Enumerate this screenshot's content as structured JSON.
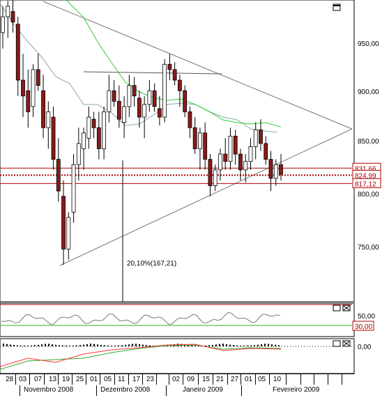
{
  "chart_data": {
    "type": "candlestick",
    "y_axis": {
      "ticks": [
        "950,00",
        "900,00",
        "850,00",
        "800,00",
        "750,00"
      ]
    },
    "price_labels": [
      {
        "text": "831,66",
        "value": 831.66,
        "color": "#b00000"
      },
      {
        "text": "824,99",
        "value": 825.0,
        "color": "#b00000"
      },
      {
        "text": "817,12",
        "value": 817.12,
        "color": "#b00000"
      }
    ],
    "measurement_label": "20,10%(167,21)",
    "oscillator": {
      "ticks": [
        "50,00"
      ],
      "level_label": "30,00"
    },
    "macd": {
      "ticks": [
        "0,00"
      ]
    },
    "x_axis": {
      "days": [
        "28",
        "03",
        "07",
        "13",
        "19",
        "25",
        "01",
        "05",
        "11",
        "17",
        "23",
        "02",
        "09",
        "15",
        "21",
        "27",
        "01",
        "05",
        "10"
      ],
      "months": [
        "Novembro 2008",
        "Dezembro 2008",
        "Janeiro 2009",
        "Fevereiro 2009"
      ]
    },
    "candles": [
      [
        960,
        985,
        945,
        975
      ],
      [
        975,
        990,
        955,
        985
      ],
      [
        980,
        995,
        960,
        970
      ],
      [
        968,
        975,
        900,
        915
      ],
      [
        915,
        940,
        880,
        900
      ],
      [
        905,
        925,
        870,
        885
      ],
      [
        890,
        930,
        880,
        925
      ],
      [
        925,
        940,
        905,
        910
      ],
      [
        905,
        920,
        860,
        870
      ],
      [
        870,
        895,
        850,
        885
      ],
      [
        880,
        890,
        830,
        840
      ],
      [
        840,
        860,
        800,
        810
      ],
      [
        805,
        820,
        740,
        755
      ],
      [
        755,
        790,
        745,
        785
      ],
      [
        790,
        845,
        780,
        835
      ],
      [
        835,
        870,
        820,
        855
      ],
      [
        850,
        870,
        830,
        865
      ],
      [
        860,
        890,
        850,
        880
      ],
      [
        878,
        885,
        860,
        870
      ],
      [
        870,
        885,
        840,
        850
      ],
      [
        850,
        890,
        840,
        885
      ],
      [
        885,
        920,
        875,
        905
      ],
      [
        905,
        915,
        890,
        895
      ],
      [
        895,
        910,
        870,
        878
      ],
      [
        875,
        900,
        860,
        890
      ],
      [
        890,
        920,
        880,
        910
      ],
      [
        910,
        918,
        890,
        900
      ],
      [
        898,
        905,
        870,
        880
      ],
      [
        880,
        900,
        860,
        892
      ],
      [
        892,
        915,
        885,
        905
      ],
      [
        905,
        912,
        885,
        890
      ],
      [
        888,
        900,
        872,
        880
      ],
      [
        880,
        935,
        875,
        930
      ],
      [
        930,
        940,
        915,
        925
      ],
      [
        925,
        932,
        910,
        915
      ],
      [
        915,
        920,
        890,
        905
      ],
      [
        905,
        910,
        880,
        885
      ],
      [
        885,
        890,
        860,
        870
      ],
      [
        870,
        880,
        845,
        850
      ],
      [
        850,
        870,
        830,
        865
      ],
      [
        865,
        875,
        830,
        840
      ],
      [
        840,
        845,
        805,
        815
      ],
      [
        815,
        835,
        810,
        830
      ],
      [
        830,
        850,
        820,
        845
      ],
      [
        845,
        860,
        830,
        838
      ],
      [
        838,
        870,
        830,
        862
      ],
      [
        862,
        868,
        835,
        845
      ],
      [
        845,
        850,
        820,
        830
      ],
      [
        830,
        845,
        818,
        838
      ],
      [
        838,
        860,
        830,
        852
      ],
      [
        852,
        875,
        840,
        868
      ],
      [
        868,
        878,
        848,
        855
      ],
      [
        855,
        862,
        835,
        840
      ],
      [
        840,
        848,
        810,
        822
      ],
      [
        822,
        840,
        815,
        835
      ],
      [
        835,
        845,
        820,
        826
      ]
    ]
  }
}
